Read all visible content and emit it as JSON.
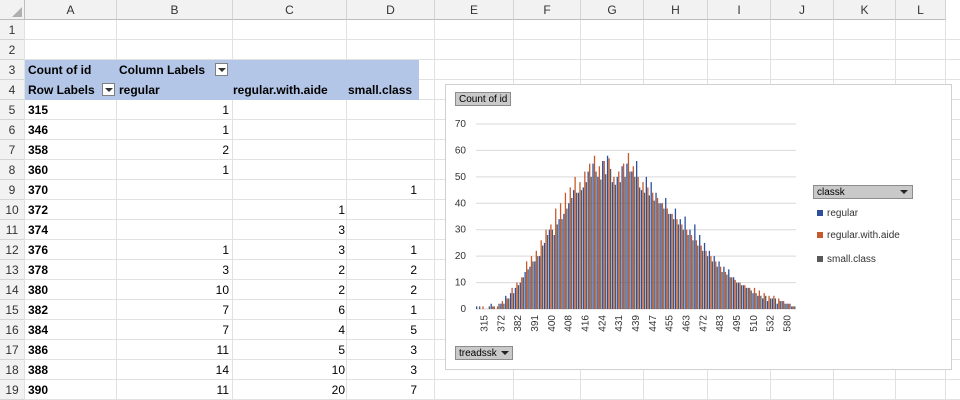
{
  "columns": [
    "A",
    "B",
    "C",
    "D",
    "E",
    "F",
    "G",
    "H",
    "I",
    "J",
    "K",
    "L"
  ],
  "rows": [
    "1",
    "2",
    "3",
    "4",
    "5",
    "6",
    "7",
    "8",
    "9",
    "10",
    "11",
    "12",
    "13",
    "14",
    "15",
    "16",
    "17",
    "18",
    "19"
  ],
  "pivot": {
    "values_label": "Count of id",
    "column_labels": "Column Labels",
    "row_labels": "Row Labels",
    "col_regular": "regular",
    "col_aide": "regular.with.aide",
    "col_small": "small.class",
    "data": [
      {
        "label": "315",
        "regular": "1",
        "aide": "",
        "small": ""
      },
      {
        "label": "346",
        "regular": "1",
        "aide": "",
        "small": ""
      },
      {
        "label": "358",
        "regular": "2",
        "aide": "",
        "small": ""
      },
      {
        "label": "360",
        "regular": "1",
        "aide": "",
        "small": ""
      },
      {
        "label": "370",
        "regular": "",
        "aide": "",
        "small": "1"
      },
      {
        "label": "372",
        "regular": "",
        "aide": "1",
        "small": ""
      },
      {
        "label": "374",
        "regular": "",
        "aide": "3",
        "small": ""
      },
      {
        "label": "376",
        "regular": "1",
        "aide": "3",
        "small": "1"
      },
      {
        "label": "378",
        "regular": "3",
        "aide": "2",
        "small": "2"
      },
      {
        "label": "380",
        "regular": "10",
        "aide": "2",
        "small": "2"
      },
      {
        "label": "382",
        "regular": "7",
        "aide": "6",
        "small": "1"
      },
      {
        "label": "384",
        "regular": "7",
        "aide": "4",
        "small": "5"
      },
      {
        "label": "386",
        "regular": "11",
        "aide": "5",
        "small": "3"
      },
      {
        "label": "388",
        "regular": "14",
        "aide": "10",
        "small": "3"
      },
      {
        "label": "390",
        "regular": "11",
        "aide": "20",
        "small": "7"
      }
    ]
  },
  "chart": {
    "values_button": "Count of id",
    "axis_button": "treadssk",
    "legend_button": "classk",
    "colors": {
      "regular": "#2e4f9e",
      "aide": "#c65a2c",
      "small": "#595959"
    }
  },
  "chart_data": {
    "type": "bar",
    "ylim": [
      0,
      70
    ],
    "yticks": [
      0,
      10,
      20,
      30,
      40,
      50,
      60,
      70
    ],
    "xticks": [
      "315",
      "372",
      "382",
      "391",
      "400",
      "408",
      "416",
      "424",
      "431",
      "439",
      "447",
      "455",
      "463",
      "472",
      "483",
      "495",
      "510",
      "532",
      "580"
    ],
    "series": [
      {
        "name": "regular",
        "values": [
          1,
          0,
          0,
          2,
          0,
          2,
          5,
          6,
          8,
          10,
          14,
          16,
          18,
          20,
          25,
          30,
          28,
          34,
          36,
          40,
          45,
          44,
          46,
          52,
          55,
          50,
          56,
          58,
          48,
          50,
          54,
          55,
          52,
          56,
          45,
          50,
          48,
          44,
          40,
          42,
          36,
          38,
          34,
          35,
          30,
          32,
          28,
          25,
          22,
          20,
          18,
          16,
          15,
          12,
          10,
          9,
          8,
          6,
          5,
          4,
          3,
          4,
          2,
          3,
          2,
          1
        ]
      },
      {
        "name": "regular.with.aide",
        "values": [
          0,
          1,
          0,
          1,
          1,
          3,
          4,
          8,
          10,
          12,
          18,
          20,
          22,
          26,
          30,
          32,
          38,
          40,
          44,
          46,
          50,
          48,
          52,
          55,
          58,
          54,
          56,
          57,
          50,
          52,
          55,
          59,
          54,
          50,
          48,
          46,
          44,
          42,
          40,
          38,
          36,
          34,
          32,
          30,
          28,
          26,
          24,
          22,
          20,
          18,
          16,
          14,
          12,
          11,
          10,
          9,
          8,
          8,
          7,
          6,
          5,
          5,
          4,
          3,
          2,
          1
        ]
      },
      {
        "name": "small.class",
        "values": [
          1,
          0,
          1,
          1,
          2,
          2,
          4,
          6,
          9,
          12,
          15,
          18,
          20,
          24,
          28,
          30,
          32,
          34,
          38,
          42,
          44,
          45,
          48,
          50,
          52,
          49,
          51,
          53,
          47,
          48,
          50,
          52,
          50,
          46,
          44,
          43,
          41,
          40,
          38,
          36,
          34,
          32,
          30,
          28,
          26,
          24,
          22,
          20,
          18,
          16,
          14,
          13,
          12,
          10,
          9,
          8,
          7,
          6,
          5,
          5,
          4,
          4,
          3,
          2,
          2,
          1
        ]
      }
    ]
  }
}
